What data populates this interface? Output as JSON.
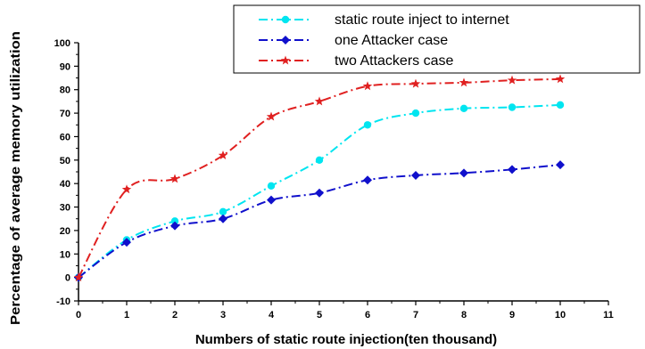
{
  "chart_data": {
    "type": "line",
    "title": "",
    "xlabel": "Numbers of static route injection(ten thousand)",
    "ylabel": "Percentage of average memory utilization",
    "xlim": [
      0,
      11
    ],
    "ylim": [
      -10,
      100
    ],
    "xticks": [
      0,
      1,
      2,
      3,
      4,
      5,
      6,
      7,
      8,
      9,
      10,
      11
    ],
    "yticks": [
      -10,
      0,
      10,
      20,
      30,
      40,
      50,
      60,
      70,
      80,
      90,
      100
    ],
    "grid": false,
    "legend_position": "top-right",
    "x": [
      0,
      1,
      2,
      3,
      4,
      5,
      6,
      7,
      8,
      9,
      10
    ],
    "series": [
      {
        "name": "static route inject to internet",
        "color": "#00e5f0",
        "marker": "circle",
        "line_style": "dash-dot",
        "values": [
          0,
          16,
          24,
          28,
          39,
          50,
          65,
          70,
          72,
          72.5,
          73.5
        ]
      },
      {
        "name": "one Attacker case",
        "color": "#1010cc",
        "marker": "diamond",
        "line_style": "dash-dot",
        "values": [
          0,
          15,
          22,
          25,
          33,
          36,
          41.5,
          43.5,
          44.5,
          46,
          48
        ]
      },
      {
        "name": "two Attackers case",
        "color": "#e02020",
        "marker": "star",
        "line_style": "dash-dot",
        "values": [
          0,
          37.5,
          42,
          52,
          68.5,
          75,
          81.5,
          82.5,
          83,
          84,
          84.5
        ]
      }
    ]
  }
}
